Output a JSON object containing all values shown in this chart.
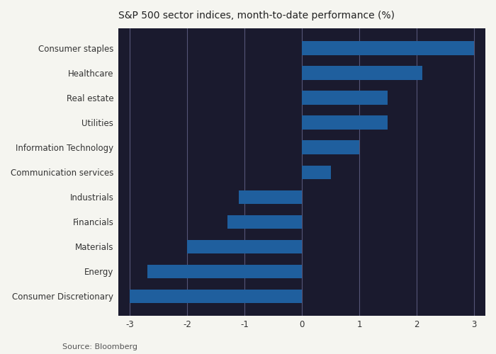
{
  "title": "S&P 500 sector indices, month-to-date performance (%)",
  "source": "Source: Bloomberg",
  "categories": [
    "Consumer Discretionary",
    "Energy",
    "Materials",
    "Financials",
    "Industrials",
    "Communication services",
    "Information Technology",
    "Utilities",
    "Real estate",
    "Healthcare",
    "Consumer staples"
  ],
  "values": [
    -3.0,
    -2.7,
    -2.0,
    -1.3,
    -1.1,
    0.5,
    1.0,
    1.5,
    1.5,
    2.1,
    3.0
  ],
  "bar_color": "#1f5f9e",
  "xlim": [
    -3.2,
    3.2
  ],
  "xticks": [
    -3,
    -2,
    -1,
    0,
    1,
    2,
    3
  ],
  "plot_bg_color": "#1a1a2e",
  "fig_bg_color": "#f5f5f0",
  "title_fontsize": 10,
  "label_fontsize": 8.5,
  "tick_fontsize": 8.5,
  "source_fontsize": 8,
  "grid_color": "#555577",
  "bar_height": 0.55
}
